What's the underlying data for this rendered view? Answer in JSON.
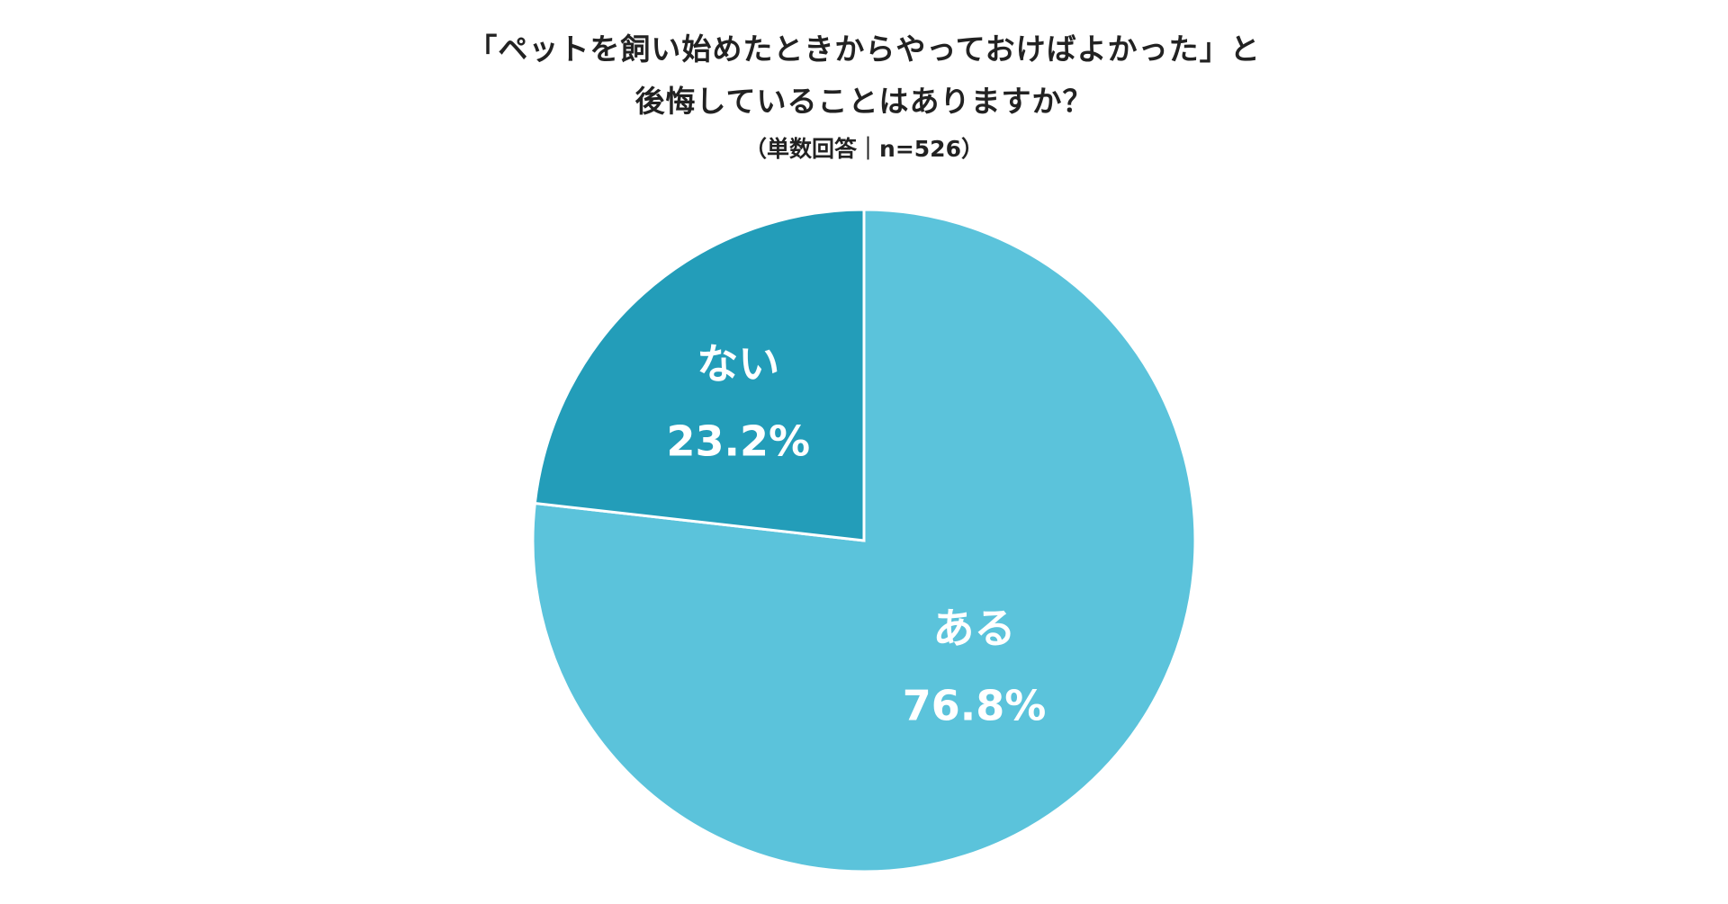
{
  "title": {
    "line1": "「ペットを飼い始めたときからやっておけばよかった」と",
    "line2": "後悔していることはありますか？",
    "subtitle": "（単数回答｜n=526）"
  },
  "colors": {
    "slice_aru": "#5bc3db",
    "slice_nai": "#239db9",
    "border": "#ffffff"
  },
  "chart_data": {
    "type": "pie",
    "title": "「ペットを飼い始めたときからやっておけばよかった」と後悔していることはありますか？",
    "subtitle": "（単数回答｜n=526）",
    "slices": [
      {
        "label": "ある",
        "value": 76.8,
        "value_label": "76.8%",
        "color": "#5bc3db"
      },
      {
        "label": "ない",
        "value": 23.2,
        "value_label": "23.2%",
        "color": "#239db9"
      }
    ],
    "start": "12 o'clock",
    "direction": "clockwise"
  }
}
